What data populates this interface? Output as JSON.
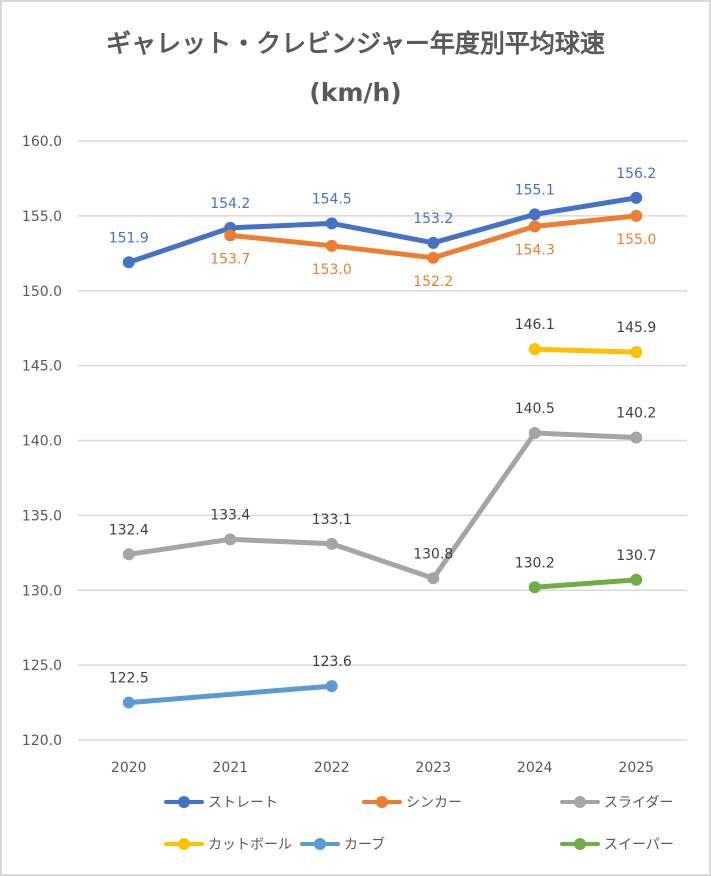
{
  "chart_data": {
    "type": "line",
    "title": "ギャレット・クレビンジャー年度別平均球速",
    "subtitle": "(km/h)",
    "xlabel": "",
    "ylabel": "",
    "categories": [
      "2020",
      "2021",
      "2022",
      "2023",
      "2024",
      "2025"
    ],
    "ylim": [
      120.0,
      160.0
    ],
    "yticks": [
      "120.0",
      "125.0",
      "130.0",
      "135.0",
      "140.0",
      "145.0",
      "150.0",
      "155.0",
      "160.0"
    ],
    "ytick_values": [
      120,
      125,
      130,
      135,
      140,
      145,
      150,
      155,
      160
    ],
    "grid": true,
    "legend_position": "bottom",
    "series": [
      {
        "name": "ストレート",
        "color": "#4472c4",
        "values": [
          151.9,
          154.2,
          154.5,
          153.2,
          155.1,
          156.2
        ],
        "labels": [
          "151.9",
          "154.2",
          "154.5",
          "153.2",
          "155.1",
          "156.2"
        ],
        "label_position": "above"
      },
      {
        "name": "シンカー",
        "color": "#ed7d31",
        "values": [
          null,
          153.7,
          153.0,
          152.2,
          154.3,
          155.0
        ],
        "labels": [
          null,
          "153.7",
          "153.0",
          "152.2",
          "154.3",
          "155.0"
        ],
        "label_position": "below"
      },
      {
        "name": "スライダー",
        "color": "#a5a5a5",
        "values": [
          132.4,
          133.4,
          133.1,
          130.8,
          140.5,
          140.2
        ],
        "labels": [
          "132.4",
          "133.4",
          "133.1",
          "130.8",
          "140.5",
          "140.2"
        ],
        "label_position": "above"
      },
      {
        "name": "カットボール",
        "color": "#ffc000",
        "values": [
          null,
          null,
          null,
          null,
          146.1,
          145.9
        ],
        "labels": [
          null,
          null,
          null,
          null,
          "146.1",
          "145.9"
        ],
        "label_position": "above"
      },
      {
        "name": "カーブ",
        "color": "#5b9bd5",
        "values": [
          122.5,
          null,
          123.6,
          null,
          null,
          null
        ],
        "labels": [
          "122.5",
          null,
          "123.6",
          null,
          null,
          null
        ],
        "label_position": "above",
        "connect_gaps": true
      },
      {
        "name": "スイーパー",
        "color": "#70ad47",
        "values": [
          null,
          null,
          null,
          null,
          130.2,
          130.7
        ],
        "labels": [
          null,
          null,
          null,
          null,
          "130.2",
          "130.7"
        ],
        "label_position": "above"
      }
    ],
    "label_color_default": "#404040"
  }
}
